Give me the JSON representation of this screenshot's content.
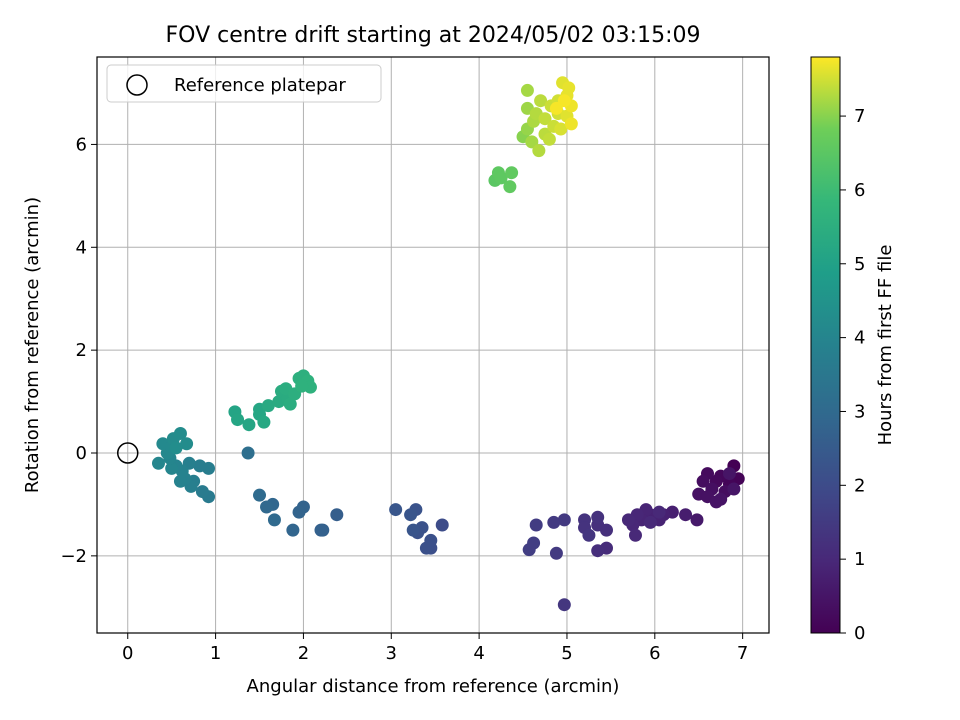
{
  "chart_data": {
    "type": "scatter",
    "title": "FOV centre drift starting at 2024/05/02 03:15:09",
    "xlabel": "Angular distance from reference (arcmin)",
    "ylabel": "Rotation from reference (arcmin)",
    "colorbar_label": "Hours from first FF file",
    "xlim": [
      -0.35,
      7.3
    ],
    "ylim": [
      -3.5,
      7.7
    ],
    "x_ticks": [
      0,
      1,
      2,
      3,
      4,
      5,
      6,
      7
    ],
    "y_ticks": [
      -2,
      0,
      2,
      4,
      6
    ],
    "colorbar_range": [
      0,
      7.8
    ],
    "colorbar_ticks": [
      0,
      1,
      2,
      3,
      4,
      5,
      6,
      7
    ],
    "grid": true,
    "legend": {
      "placement": "top-left",
      "entries": [
        "Reference platepar"
      ]
    },
    "reference_point": {
      "x": 0,
      "y": 0
    },
    "points": [
      {
        "x": 6.9,
        "y": -0.25,
        "t": 0.0
      },
      {
        "x": 6.95,
        "y": -0.5,
        "t": 0.05
      },
      {
        "x": 6.85,
        "y": -0.6,
        "t": 0.1
      },
      {
        "x": 6.75,
        "y": -0.45,
        "t": 0.15
      },
      {
        "x": 6.7,
        "y": -0.55,
        "t": 0.2
      },
      {
        "x": 6.6,
        "y": -0.4,
        "t": 0.25
      },
      {
        "x": 6.55,
        "y": -0.55,
        "t": 0.3
      },
      {
        "x": 6.8,
        "y": -0.75,
        "t": 0.3
      },
      {
        "x": 6.65,
        "y": -0.7,
        "t": 0.35
      },
      {
        "x": 6.5,
        "y": -0.8,
        "t": 0.4
      },
      {
        "x": 6.6,
        "y": -0.85,
        "t": 0.4
      },
      {
        "x": 6.7,
        "y": -0.95,
        "t": 0.45
      },
      {
        "x": 6.75,
        "y": -0.9,
        "t": 0.45
      },
      {
        "x": 6.9,
        "y": -0.7,
        "t": 0.5
      },
      {
        "x": 6.85,
        "y": -0.4,
        "t": 0.5
      },
      {
        "x": 6.48,
        "y": -1.3,
        "t": 0.6
      },
      {
        "x": 6.35,
        "y": -1.2,
        "t": 0.7
      },
      {
        "x": 6.2,
        "y": -1.15,
        "t": 0.75
      },
      {
        "x": 6.1,
        "y": -1.2,
        "t": 0.8
      },
      {
        "x": 6.05,
        "y": -1.3,
        "t": 0.85
      },
      {
        "x": 5.95,
        "y": -1.2,
        "t": 0.85
      },
      {
        "x": 5.9,
        "y": -1.1,
        "t": 0.9
      },
      {
        "x": 5.85,
        "y": -1.3,
        "t": 0.9
      },
      {
        "x": 5.8,
        "y": -1.2,
        "t": 0.95
      },
      {
        "x": 5.75,
        "y": -1.4,
        "t": 0.95
      },
      {
        "x": 5.7,
        "y": -1.3,
        "t": 1.0
      },
      {
        "x": 5.78,
        "y": -1.6,
        "t": 1.0
      },
      {
        "x": 5.95,
        "y": -1.35,
        "t": 1.0
      },
      {
        "x": 6.05,
        "y": -1.15,
        "t": 1.0
      },
      {
        "x": 5.45,
        "y": -1.85,
        "t": 1.1
      },
      {
        "x": 5.35,
        "y": -1.9,
        "t": 1.15
      },
      {
        "x": 5.45,
        "y": -1.5,
        "t": 1.2
      },
      {
        "x": 5.35,
        "y": -1.4,
        "t": 1.2
      },
      {
        "x": 5.35,
        "y": -1.25,
        "t": 1.25
      },
      {
        "x": 5.2,
        "y": -1.3,
        "t": 1.3
      },
      {
        "x": 5.2,
        "y": -1.45,
        "t": 1.3
      },
      {
        "x": 5.25,
        "y": -1.6,
        "t": 1.35
      },
      {
        "x": 4.97,
        "y": -2.95,
        "t": 1.4
      },
      {
        "x": 4.97,
        "y": -1.3,
        "t": 1.45
      },
      {
        "x": 4.85,
        "y": -1.35,
        "t": 1.5
      },
      {
        "x": 4.88,
        "y": -1.95,
        "t": 1.5
      },
      {
        "x": 4.65,
        "y": -1.4,
        "t": 1.55
      },
      {
        "x": 4.62,
        "y": -1.75,
        "t": 1.6
      },
      {
        "x": 4.57,
        "y": -1.88,
        "t": 1.6
      },
      {
        "x": 3.58,
        "y": -1.4,
        "t": 2.0
      },
      {
        "x": 3.45,
        "y": -1.85,
        "t": 2.1
      },
      {
        "x": 3.4,
        "y": -1.85,
        "t": 2.15
      },
      {
        "x": 3.45,
        "y": -1.7,
        "t": 2.15
      },
      {
        "x": 3.35,
        "y": -1.45,
        "t": 2.2
      },
      {
        "x": 3.3,
        "y": -1.55,
        "t": 2.2
      },
      {
        "x": 3.28,
        "y": -1.1,
        "t": 2.25
      },
      {
        "x": 3.22,
        "y": -1.2,
        "t": 2.3
      },
      {
        "x": 3.25,
        "y": -1.5,
        "t": 2.3
      },
      {
        "x": 3.05,
        "y": -1.1,
        "t": 2.35
      },
      {
        "x": 2.38,
        "y": -1.2,
        "t": 2.6
      },
      {
        "x": 2.22,
        "y": -1.5,
        "t": 2.7
      },
      {
        "x": 2.2,
        "y": -1.5,
        "t": 2.7
      },
      {
        "x": 2.0,
        "y": -1.05,
        "t": 2.75
      },
      {
        "x": 1.95,
        "y": -1.15,
        "t": 2.8
      },
      {
        "x": 1.88,
        "y": -1.5,
        "t": 2.85
      },
      {
        "x": 1.65,
        "y": -1.0,
        "t": 2.9
      },
      {
        "x": 1.58,
        "y": -1.05,
        "t": 2.95
      },
      {
        "x": 1.67,
        "y": -1.3,
        "t": 3.0
      },
      {
        "x": 1.5,
        "y": -0.82,
        "t": 3.05
      },
      {
        "x": 1.37,
        "y": 0.0,
        "t": 3.2
      },
      {
        "x": 0.92,
        "y": -0.85,
        "t": 3.6
      },
      {
        "x": 0.85,
        "y": -0.75,
        "t": 3.65
      },
      {
        "x": 0.92,
        "y": -0.3,
        "t": 3.7
      },
      {
        "x": 0.82,
        "y": -0.25,
        "t": 3.7
      },
      {
        "x": 0.75,
        "y": -0.55,
        "t": 3.75
      },
      {
        "x": 0.72,
        "y": -0.65,
        "t": 3.8
      },
      {
        "x": 0.7,
        "y": -0.2,
        "t": 3.8
      },
      {
        "x": 0.65,
        "y": -0.5,
        "t": 3.85
      },
      {
        "x": 0.6,
        "y": -0.55,
        "t": 3.9
      },
      {
        "x": 0.62,
        "y": -0.35,
        "t": 3.9
      },
      {
        "x": 0.55,
        "y": -0.25,
        "t": 3.95
      },
      {
        "x": 0.5,
        "y": -0.3,
        "t": 4.0
      },
      {
        "x": 0.48,
        "y": -0.1,
        "t": 4.0
      },
      {
        "x": 0.35,
        "y": -0.2,
        "t": 4.05
      },
      {
        "x": 0.45,
        "y": 0.0,
        "t": 4.1
      },
      {
        "x": 0.4,
        "y": 0.18,
        "t": 4.15
      },
      {
        "x": 0.5,
        "y": 0.12,
        "t": 4.15
      },
      {
        "x": 0.52,
        "y": 0.28,
        "t": 4.2
      },
      {
        "x": 0.6,
        "y": 0.38,
        "t": 4.25
      },
      {
        "x": 0.67,
        "y": 0.18,
        "t": 4.25
      },
      {
        "x": 0.55,
        "y": 0.1,
        "t": 4.3
      },
      {
        "x": 1.22,
        "y": 0.8,
        "t": 5.1
      },
      {
        "x": 1.25,
        "y": 0.65,
        "t": 5.15
      },
      {
        "x": 1.38,
        "y": 0.55,
        "t": 5.15
      },
      {
        "x": 1.5,
        "y": 0.85,
        "t": 5.2
      },
      {
        "x": 1.5,
        "y": 0.75,
        "t": 5.2
      },
      {
        "x": 1.55,
        "y": 0.6,
        "t": 5.25
      },
      {
        "x": 1.6,
        "y": 0.92,
        "t": 5.3
      },
      {
        "x": 1.72,
        "y": 1.0,
        "t": 5.35
      },
      {
        "x": 1.75,
        "y": 1.2,
        "t": 5.4
      },
      {
        "x": 1.82,
        "y": 1.05,
        "t": 5.4
      },
      {
        "x": 1.85,
        "y": 0.95,
        "t": 5.45
      },
      {
        "x": 1.8,
        "y": 1.25,
        "t": 5.45
      },
      {
        "x": 1.9,
        "y": 1.15,
        "t": 5.5
      },
      {
        "x": 1.95,
        "y": 1.45,
        "t": 5.55
      },
      {
        "x": 2.0,
        "y": 1.5,
        "t": 5.55
      },
      {
        "x": 2.05,
        "y": 1.4,
        "t": 5.6
      },
      {
        "x": 2.08,
        "y": 1.28,
        "t": 5.6
      },
      {
        "x": 1.98,
        "y": 1.3,
        "t": 5.6
      },
      {
        "x": 4.18,
        "y": 5.3,
        "t": 6.5
      },
      {
        "x": 4.22,
        "y": 5.45,
        "t": 6.55
      },
      {
        "x": 4.25,
        "y": 5.35,
        "t": 6.55
      },
      {
        "x": 4.35,
        "y": 5.18,
        "t": 6.6
      },
      {
        "x": 4.37,
        "y": 5.45,
        "t": 6.6
      },
      {
        "x": 4.5,
        "y": 6.15,
        "t": 7.0
      },
      {
        "x": 4.55,
        "y": 6.3,
        "t": 7.1
      },
      {
        "x": 4.55,
        "y": 6.7,
        "t": 7.15
      },
      {
        "x": 4.55,
        "y": 7.05,
        "t": 7.2
      },
      {
        "x": 4.6,
        "y": 6.05,
        "t": 7.2
      },
      {
        "x": 4.62,
        "y": 6.45,
        "t": 7.25
      },
      {
        "x": 4.65,
        "y": 6.6,
        "t": 7.3
      },
      {
        "x": 4.68,
        "y": 5.88,
        "t": 7.3
      },
      {
        "x": 4.7,
        "y": 6.85,
        "t": 7.35
      },
      {
        "x": 4.75,
        "y": 6.2,
        "t": 7.35
      },
      {
        "x": 4.75,
        "y": 6.5,
        "t": 7.4
      },
      {
        "x": 4.8,
        "y": 6.1,
        "t": 7.4
      },
      {
        "x": 4.82,
        "y": 6.75,
        "t": 7.45
      },
      {
        "x": 4.85,
        "y": 6.35,
        "t": 7.45
      },
      {
        "x": 4.9,
        "y": 6.6,
        "t": 7.5
      },
      {
        "x": 4.9,
        "y": 6.85,
        "t": 7.5
      },
      {
        "x": 4.93,
        "y": 6.3,
        "t": 7.55
      },
      {
        "x": 4.95,
        "y": 7.2,
        "t": 7.6
      },
      {
        "x": 5.0,
        "y": 6.55,
        "t": 7.6
      },
      {
        "x": 5.0,
        "y": 6.95,
        "t": 7.65
      },
      {
        "x": 5.02,
        "y": 7.1,
        "t": 7.65
      },
      {
        "x": 5.05,
        "y": 6.75,
        "t": 7.7
      },
      {
        "x": 5.05,
        "y": 6.4,
        "t": 7.7
      },
      {
        "x": 4.97,
        "y": 6.85,
        "t": 7.75
      },
      {
        "x": 4.88,
        "y": 6.7,
        "t": 7.75
      }
    ]
  }
}
